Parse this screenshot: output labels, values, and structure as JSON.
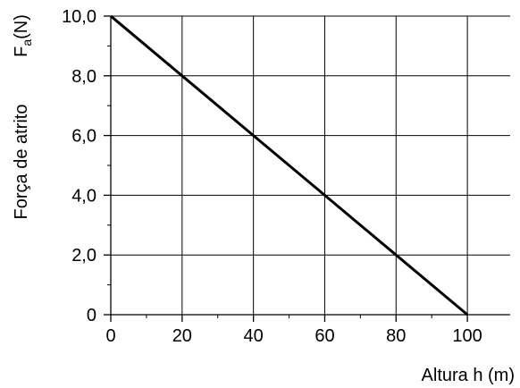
{
  "chart_data": {
    "type": "line",
    "xlabel": "Altura h (m)",
    "ylabel_main": "Força de atrito",
    "ylabel_symbol": "F",
    "ylabel_subscript": "a",
    "ylabel_unit": "(N)",
    "x_ticks": [
      0,
      20,
      40,
      60,
      80,
      100
    ],
    "x_tick_labels": [
      "0",
      "20",
      "40",
      "60",
      "80",
      "100"
    ],
    "y_ticks": [
      0,
      2,
      4,
      6,
      8,
      10
    ],
    "y_tick_labels": [
      "0",
      "2,0",
      "4,0",
      "6,0",
      "8,0",
      "10,0"
    ],
    "xlim": [
      0,
      112
    ],
    "ylim": [
      0,
      10
    ],
    "grid": true,
    "series": [
      {
        "x": [
          0,
          20,
          40,
          60,
          80,
          100
        ],
        "y": [
          10,
          8,
          6,
          4,
          2,
          0
        ],
        "color": "#000000"
      }
    ]
  }
}
